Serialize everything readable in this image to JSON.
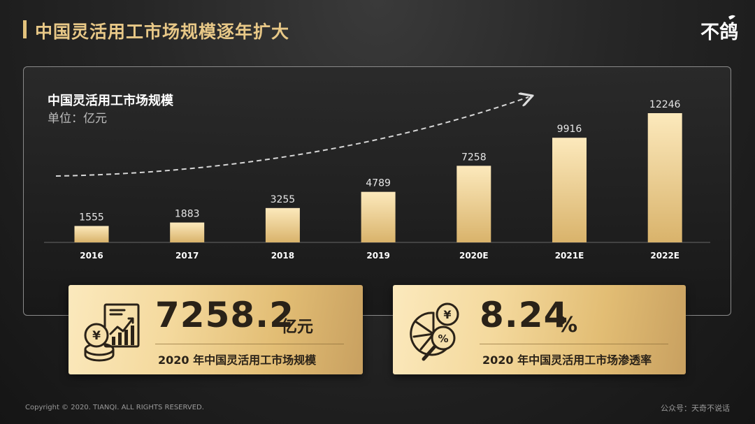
{
  "header": {
    "title": "中国灵活用工市场规模逐年扩大",
    "logo_text": "不鸽"
  },
  "chart_data": {
    "type": "bar",
    "title": "中国灵活用工市场规模",
    "unit_label": "单位：亿元",
    "categories": [
      "2016",
      "2017",
      "2018",
      "2019",
      "2020E",
      "2021E",
      "2022E"
    ],
    "values": [
      1555,
      1883,
      3255,
      4789,
      7258,
      9916,
      12246
    ],
    "value_labels": [
      "1555",
      "1883",
      "3255",
      "4789",
      "7258",
      "9916",
      "12246"
    ],
    "ylim": [
      0,
      12246
    ],
    "trend_arrow": true,
    "grid": false,
    "bar_color": "#f0d08e"
  },
  "cards": [
    {
      "value": "7258.2",
      "unit": "亿元",
      "caption": "2020 年中国灵活用工市场规模",
      "icon": "coin-chart-icon"
    },
    {
      "value": "8.24",
      "unit": "%",
      "caption": "2020 年中国灵活用工市场渗透率",
      "icon": "pie-magnifier-icon"
    }
  ],
  "footer": {
    "copyright": "Copyright © 2020. TIANQI. ALL RIGHTS RESERVED.",
    "source": "公众号：天奇不说话"
  },
  "colors": {
    "gold": "#e2c27c",
    "card_text": "#2a2218",
    "background": "#1e1e1e"
  }
}
